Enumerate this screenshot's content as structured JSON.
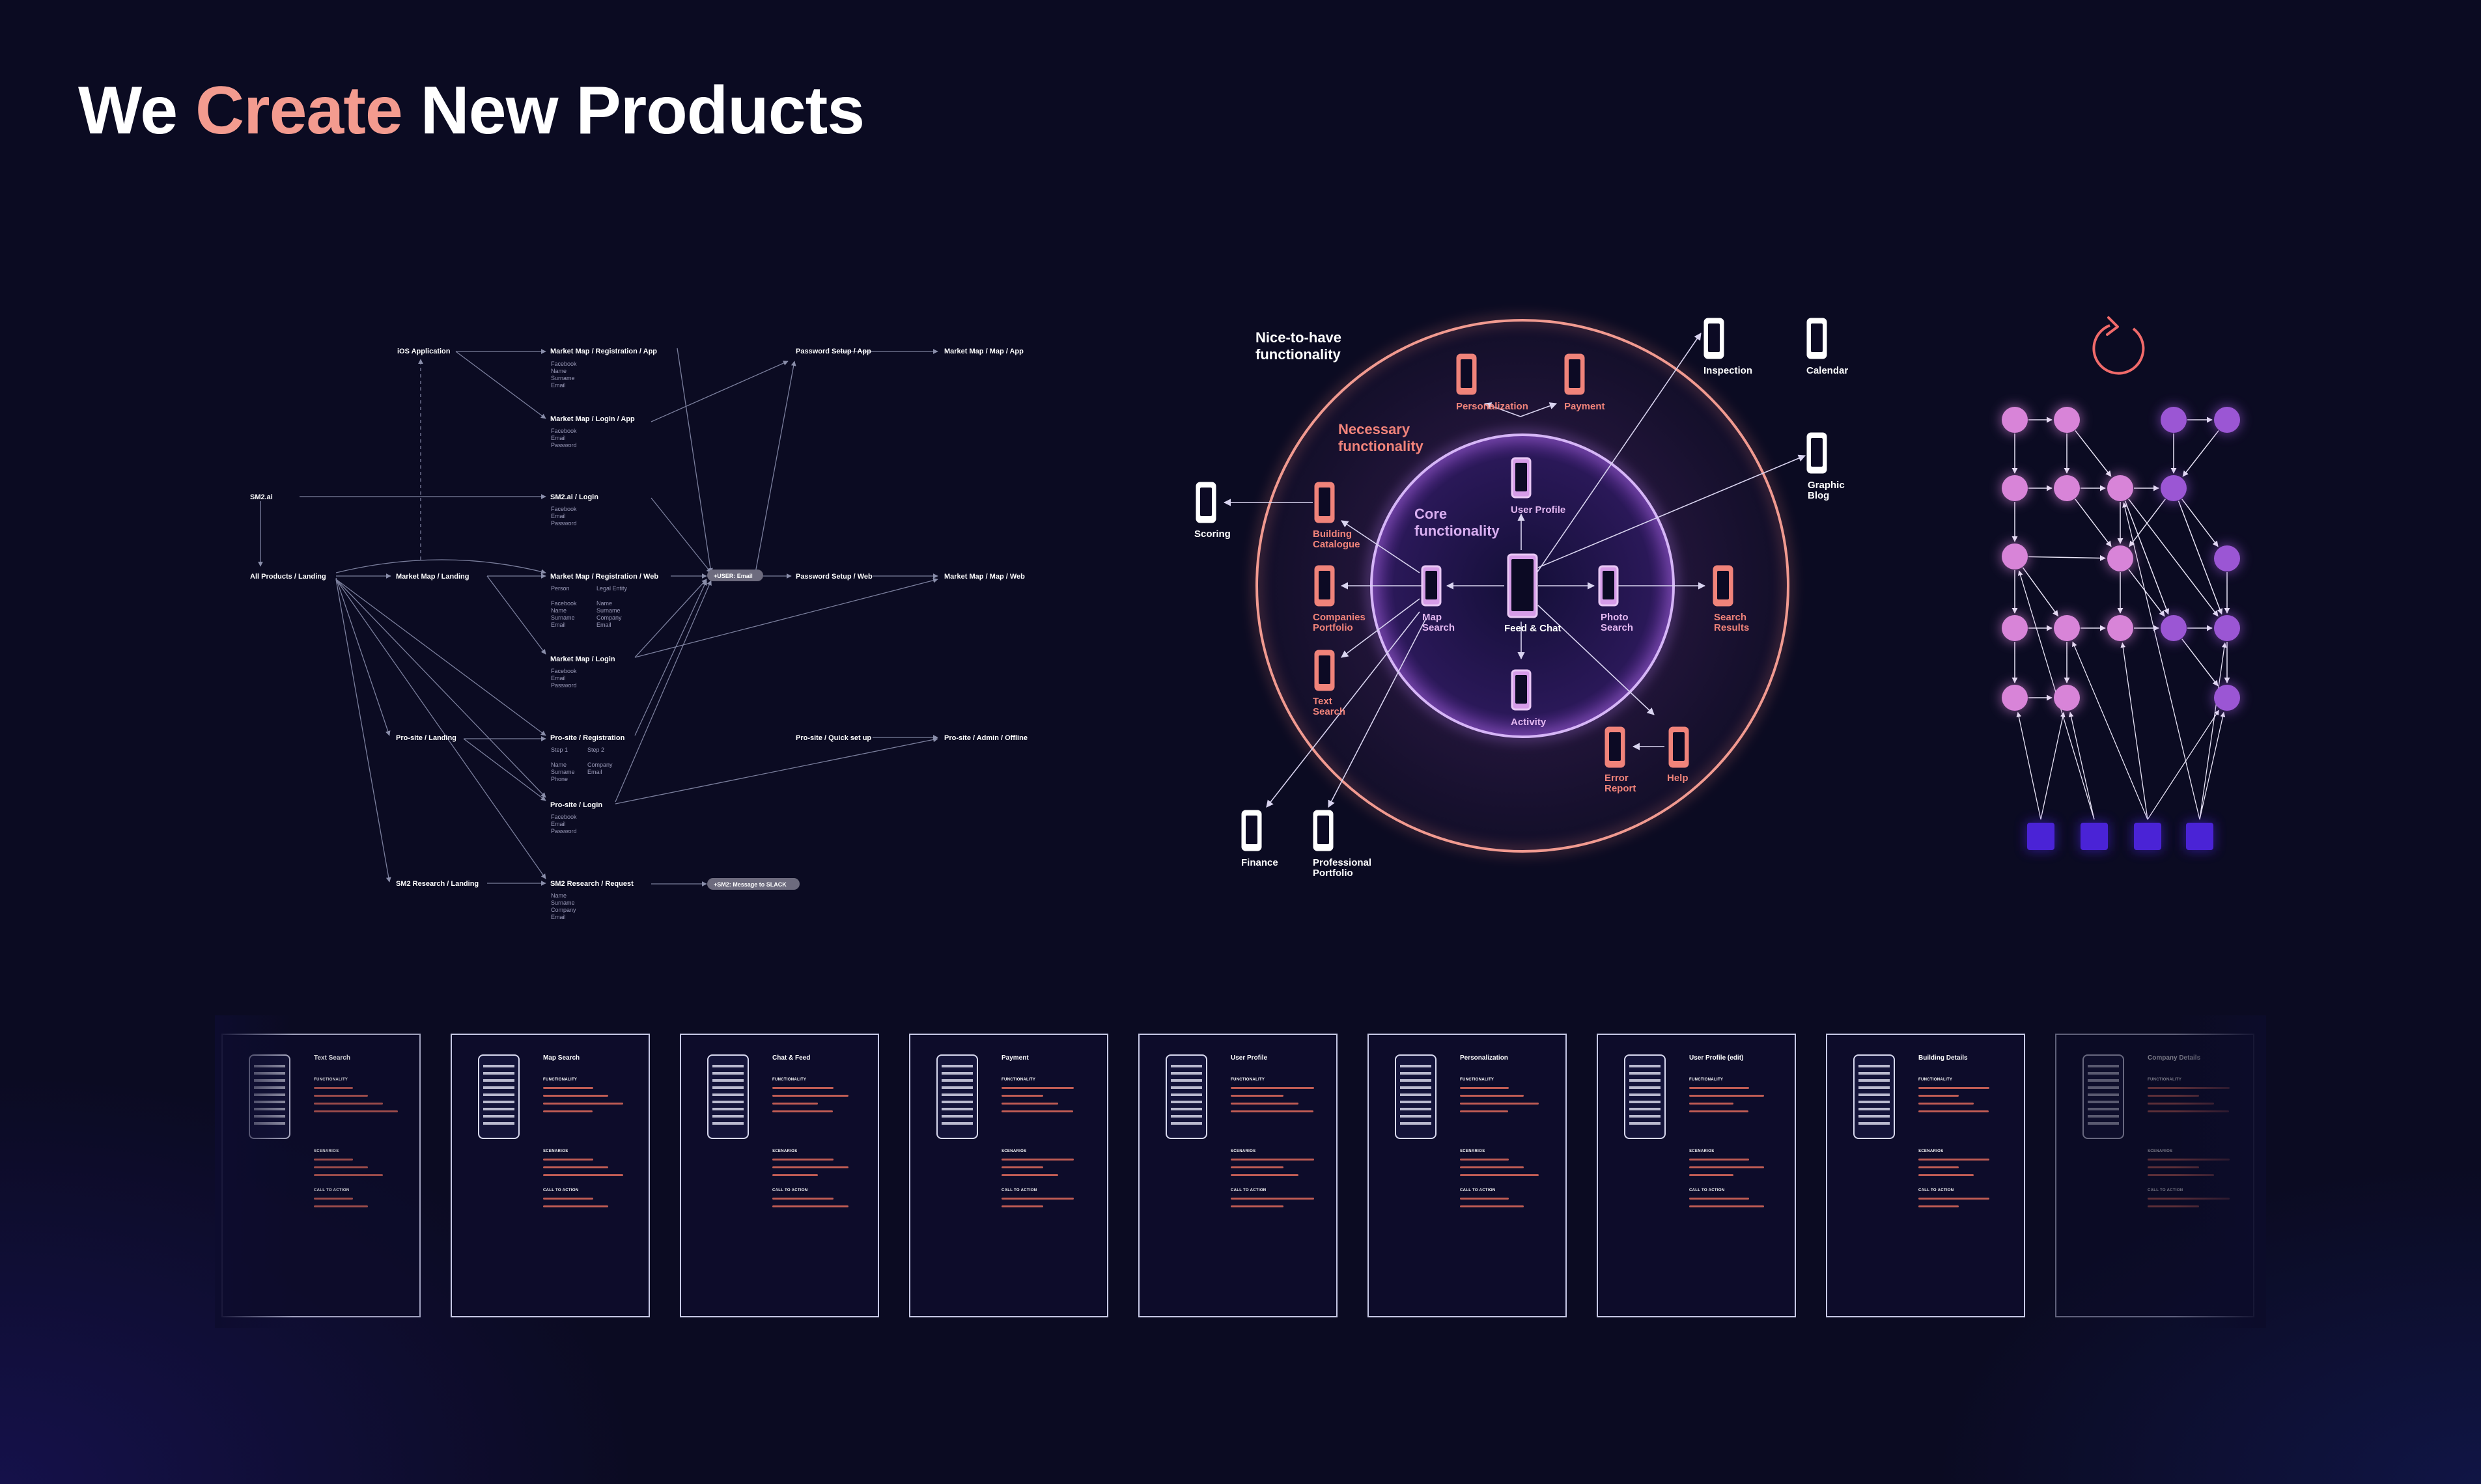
{
  "headline": {
    "part1": "We ",
    "accent": "Create",
    "part2": " New Products"
  },
  "flow": {
    "nodes": {
      "ios": "iOS Application",
      "sm2ai": "SM2.ai",
      "all_products": "All Products / Landing",
      "market_landing": "Market Map / Landing",
      "prosite_landing": "Pro-site / Landing",
      "research_landing": "SM2 Research / Landing",
      "mm_reg_app": "Market Map / Registration / App",
      "mm_login_app": "Market Map / Login / App",
      "sm2_login": "SM2.ai / Login",
      "mm_reg_web": "Market Map / Registration / Web",
      "mm_login": "Market Map / Login",
      "ps_reg": "Pro-site / Registration",
      "ps_login": "Pro-site / Login",
      "research_req": "SM2 Research / Request",
      "pw_app": "Password Setup / App",
      "pw_web": "Password Setup / Web",
      "mm_app": "Market Map / Map / App",
      "mm_web": "Market Map / Map / Web",
      "ps_quick": "Pro-site / Quick set up",
      "ps_admin": "Pro-site / Admin / Offline",
      "user_email": "+USER: Email",
      "slack": "+SM2: Message to SLACK"
    },
    "fields": {
      "reg_app": [
        "Facebook",
        "Name",
        "Surname",
        "Email"
      ],
      "login_app": [
        "Facebook",
        "Email",
        "Password"
      ],
      "sm2_login": [
        "Facebook",
        "Email",
        "Password"
      ],
      "reg_web_person": "Person",
      "reg_web_legal": "Legal Entity",
      "reg_web_a": [
        "Facebook",
        "Name",
        "Surname",
        "Email"
      ],
      "reg_web_b": [
        "Name",
        "Surname",
        "Company",
        "Email"
      ],
      "mm_login": [
        "Facebook",
        "Email",
        "Password"
      ],
      "ps_step1": "Step 1",
      "ps_step2": "Step 2",
      "ps_a": [
        "Name",
        "Surname",
        "Phone"
      ],
      "ps_b": [
        "Company",
        "Email"
      ],
      "ps_login": [
        "Facebook",
        "Email",
        "Password"
      ],
      "research": [
        "Name",
        "Surname",
        "Company",
        "Email"
      ]
    }
  },
  "rings": {
    "outer_label": [
      "Nice-to-have",
      "functionality"
    ],
    "middle_label": [
      "Necessary",
      "functionality"
    ],
    "core_label": [
      "Core",
      "functionality"
    ],
    "core_nodes": {
      "user_profile": "User Profile",
      "feed": "Feed & Chat",
      "map": [
        "Map",
        "Search"
      ],
      "photo": [
        "Photo",
        "Search"
      ],
      "activity": "Activity"
    },
    "necessary_nodes": {
      "personalization": "Personalization",
      "payment": "Payment",
      "building": [
        "Building",
        "Catalogue"
      ],
      "companies": [
        "Companies",
        "Portfolio"
      ],
      "text": [
        "Text",
        "Search"
      ],
      "results": [
        "Search",
        "Results"
      ],
      "error": [
        "Error",
        "Report"
      ],
      "help": "Help"
    },
    "outer_nodes": {
      "inspection": "Inspection",
      "calendar": "Calendar",
      "graphic": [
        "Graphic",
        "Blog"
      ],
      "scoring": "Scoring",
      "finance": "Finance",
      "professional": [
        "Professional",
        "Portfolio"
      ]
    },
    "colors": {
      "outer": "#f0837a",
      "core": "#b27ae6",
      "necessary_text": "#f0837a",
      "core_text": "#e0b6f0"
    }
  },
  "graph": {
    "icon": "refresh-icon",
    "colors": {
      "pink": "#d884d8",
      "purple": "#9b56d4",
      "square": "#4a23d6",
      "ring": "#f06a6a"
    }
  },
  "cards": [
    {
      "title": "Text Search"
    },
    {
      "title": "Map Search"
    },
    {
      "title": "Chat & Feed"
    },
    {
      "title": "Payment"
    },
    {
      "title": "User Profile"
    },
    {
      "title": "Personalization"
    },
    {
      "title": "User Profile (edit)"
    },
    {
      "title": "Building Details"
    },
    {
      "title": "Company Details"
    }
  ],
  "card_sections": {
    "functionality": "FUNCTIONALITY",
    "scenarios": "SCENARIOS",
    "cta": "CALL TO ACTION"
  }
}
